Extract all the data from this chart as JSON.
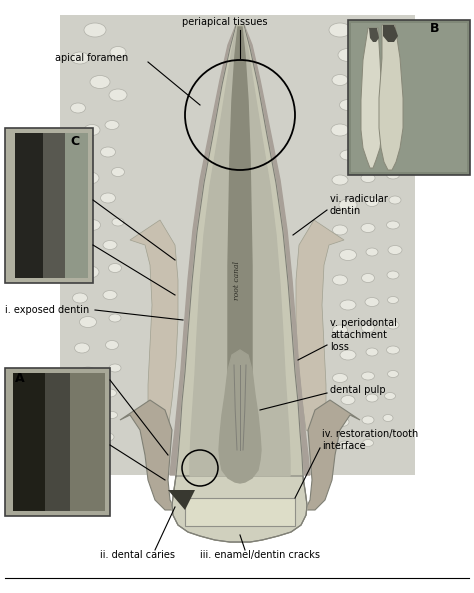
{
  "fig_width": 4.74,
  "fig_height": 5.93,
  "dpi": 100,
  "labels": {
    "apical_foramen": "apical foramen",
    "periapical_tissues": "periapical tissues",
    "label_B": "B",
    "label_C": "C",
    "label_A": "A",
    "exposed_dentin": "i. exposed dentin",
    "dental_caries": "ii. dental caries",
    "enamel_dentin": "iii. enamel/dentin cracks",
    "restoration": "iv. restoration/tooth\ninterface",
    "dental_pulp": "dental pulp",
    "periodontal": "v. periodontal\nattachment\nloss",
    "radicular": "vi. radicular\ndentin",
    "root_canal": "root canal"
  },
  "colors": {
    "white": "#ffffff",
    "black": "#000000",
    "bone_bg": "#d0d0c8",
    "bone_hole_fill": "#e8e8e0",
    "bone_hole_edge": "#b0b0a8",
    "tooth_dentin": "#c8c8b5",
    "tooth_inner_dentin": "#b8b8a8",
    "tooth_pdl": "#a8a898",
    "canal_fill": "#8a8a7a",
    "canal_dark": "#707068",
    "pulp_light": "#c0bfb0",
    "crown_fill": "#d0d0be",
    "crown_lighter": "#ddddc8",
    "gum_tissue": "#b0a898",
    "caries_dark": "#383830",
    "ann_line": "#000000",
    "inset_bg_c": "#a0a090",
    "inset_dark_c": "#252520",
    "inset_light_c": "#787870",
    "inset_bg_a": "#989888",
    "inset_dark_a": "#202018",
    "inset_light_a": "#686860",
    "inset_b_bg": "#909888",
    "inset_b_dark": "#303028",
    "inset_b_tooth": "#d8d8c8",
    "periodontal_tissue": "#b8b0a0",
    "annotation_gray": "#404040"
  }
}
